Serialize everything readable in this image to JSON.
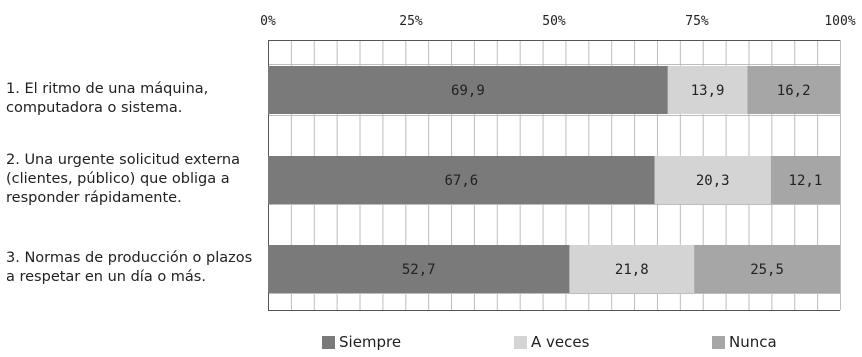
{
  "chart_data": {
    "type": "bar",
    "orientation": "horizontal",
    "stacked": true,
    "xlim": [
      0,
      100
    ],
    "x_ticks": [
      "0%",
      "25%",
      "50%",
      "75%",
      "100%"
    ],
    "categories": [
      "1. El ritmo de una máquina,\ncomputadora o sistema.",
      "2. Una urgente solicitud externa\n(clientes, público) que obliga  a\nresponder  rápidamente.",
      "3. Normas de producción o plazos\na respetar en un día o más."
    ],
    "series": [
      {
        "name": "Siempre",
        "color": "#7a7a7a",
        "values": [
          69.9,
          67.6,
          52.7
        ],
        "labels": [
          "69,9",
          "67,6",
          "52,7"
        ]
      },
      {
        "name": "A veces",
        "color": "#d4d4d4",
        "values": [
          13.9,
          20.3,
          21.8
        ],
        "labels": [
          "13,9",
          "20,3",
          "21,8"
        ]
      },
      {
        "name": "Nunca",
        "color": "#a6a6a6",
        "values": [
          16.2,
          12.1,
          25.5
        ],
        "labels": [
          "16,2",
          "12,1",
          "25,5"
        ]
      }
    ],
    "grid": true,
    "legend_position": "bottom"
  }
}
